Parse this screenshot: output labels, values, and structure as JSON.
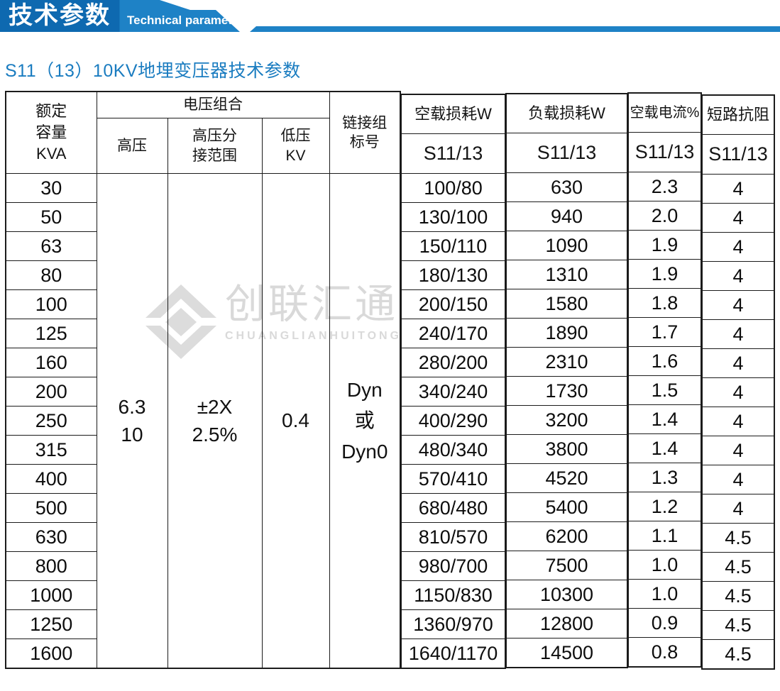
{
  "banner": {
    "title_zh": "技术参数",
    "title_en": "Technical parameter"
  },
  "subtitle": "S11（13）10KV地埋变压器技术参数",
  "watermark": {
    "logo_text": "创联汇通",
    "logo_caption": "CHUANGLIANHUITONG"
  },
  "colors": {
    "banner_dark_blue": "#0e69b0",
    "banner_light_blue": "#1e82c6",
    "subtitle_blue": "#1a7cc0",
    "table_header_bg": "#bfe1f2",
    "table_border": "#1b1b1b",
    "watermark_gray": "#d9d9d9"
  },
  "table": {
    "headers": {
      "capacity": "额定\n容量\nKVA",
      "voltage_group": "电压组合",
      "hv": "高压",
      "hv_tap": "高压分\n接范围",
      "lv": "低压\nKV",
      "connection": "链接组\n标号",
      "no_load_loss": "空载损耗W",
      "load_loss": "负载损耗W",
      "no_load_current": "空载电流%",
      "impedance": "短路抗阻",
      "sub_model": "S11/13"
    },
    "merged": {
      "hv": "6.3\n10",
      "hv_tap": "±2X\n2.5%",
      "lv": "0.4",
      "connection": "Dyn\n或\nDyn0"
    },
    "rows": [
      {
        "kva": "30",
        "no_load": "100/80",
        "load": "630",
        "current": "2.3",
        "impedance": "4"
      },
      {
        "kva": "50",
        "no_load": "130/100",
        "load": "940",
        "current": "2.0",
        "impedance": "4"
      },
      {
        "kva": "63",
        "no_load": "150/110",
        "load": "1090",
        "current": "1.9",
        "impedance": "4"
      },
      {
        "kva": "80",
        "no_load": "180/130",
        "load": "1310",
        "current": "1.9",
        "impedance": "4"
      },
      {
        "kva": "100",
        "no_load": "200/150",
        "load": "1580",
        "current": "1.8",
        "impedance": "4"
      },
      {
        "kva": "125",
        "no_load": "240/170",
        "load": "1890",
        "current": "1.7",
        "impedance": "4"
      },
      {
        "kva": "160",
        "no_load": "280/200",
        "load": "2310",
        "current": "1.6",
        "impedance": "4"
      },
      {
        "kva": "200",
        "no_load": "340/240",
        "load": "1730",
        "current": "1.5",
        "impedance": "4"
      },
      {
        "kva": "250",
        "no_load": "400/290",
        "load": "3200",
        "current": "1.4",
        "impedance": "4"
      },
      {
        "kva": "315",
        "no_load": "480/340",
        "load": "3800",
        "current": "1.4",
        "impedance": "4"
      },
      {
        "kva": "400",
        "no_load": "570/410",
        "load": "4520",
        "current": "1.3",
        "impedance": "4"
      },
      {
        "kva": "500",
        "no_load": "680/480",
        "load": "5400",
        "current": "1.2",
        "impedance": "4"
      },
      {
        "kva": "630",
        "no_load": "810/570",
        "load": "6200",
        "current": "1.1",
        "impedance": "4.5"
      },
      {
        "kva": "800",
        "no_load": "980/700",
        "load": "7500",
        "current": "1.0",
        "impedance": "4.5"
      },
      {
        "kva": "1000",
        "no_load": "1150/830",
        "load": "10300",
        "current": "1.0",
        "impedance": "4.5"
      },
      {
        "kva": "1250",
        "no_load": "1360/970",
        "load": "12800",
        "current": "0.9",
        "impedance": "4.5"
      },
      {
        "kva": "1600",
        "no_load": "1640/1170",
        "load": "14500",
        "current": "0.8",
        "impedance": "4.5"
      }
    ]
  }
}
